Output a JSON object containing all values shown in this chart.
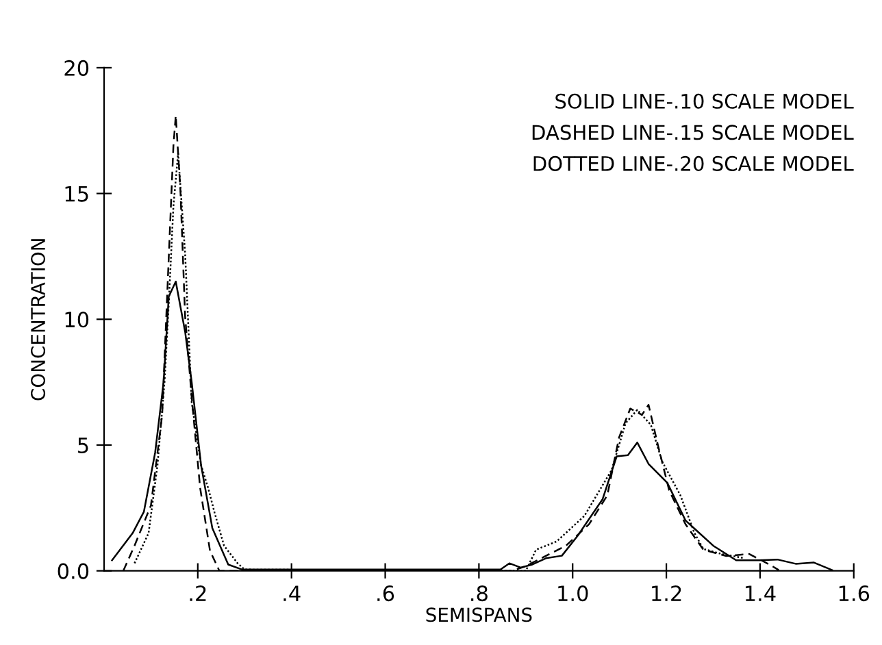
{
  "chart_data": {
    "type": "line",
    "xlabel": "SEMISPANS",
    "ylabel": "CONCENTRATION",
    "annotations": [
      "SOLID LINE-.10 SCALE MODEL",
      "DASHED LINE-.15 SCALE MODEL",
      "DOTTED LINE-.20 SCALE MODEL"
    ],
    "xlim": [
      0,
      1.6
    ],
    "ylim": [
      0,
      20
    ],
    "xticks": [
      {
        "value": 0.2,
        "label": ".2"
      },
      {
        "value": 0.4,
        "label": ".4"
      },
      {
        "value": 0.6,
        "label": ".6"
      },
      {
        "value": 0.8,
        "label": ".8"
      },
      {
        "value": 1.0,
        "label": "1.0"
      },
      {
        "value": 1.2,
        "label": "1.2"
      },
      {
        "value": 1.4,
        "label": "1.4"
      },
      {
        "value": 1.6,
        "label": "1.6"
      }
    ],
    "yticks": [
      {
        "value": 0,
        "label": "0.0"
      },
      5,
      10,
      15,
      20
    ],
    "grid": false,
    "legend": false,
    "marker": "none",
    "series": [
      {
        "color": "#000000",
        "line_style": "solid",
        "x": [
          0.017,
          0.061,
          0.085,
          0.109,
          0.127,
          0.138,
          0.153,
          0.173,
          0.187,
          0.207,
          0.231,
          0.265,
          0.295,
          0.846,
          0.865,
          0.889,
          0.914,
          0.943,
          0.977,
          1.011,
          1.064,
          1.094,
          1.118,
          1.138,
          1.162,
          1.202,
          1.241,
          1.3,
          1.349,
          1.398,
          1.437,
          1.476,
          1.515,
          1.554
        ],
        "values": [
          0.42,
          1.5,
          2.35,
          4.7,
          7.5,
          10.9,
          11.5,
          9.5,
          7.5,
          4.2,
          1.7,
          0.25,
          0.05,
          0.05,
          0.3,
          0.13,
          0.25,
          0.5,
          0.6,
          1.4,
          2.85,
          4.55,
          4.6,
          5.1,
          4.25,
          3.5,
          2.0,
          1.0,
          0.42,
          0.42,
          0.45,
          0.28,
          0.33,
          0.03
        ]
      },
      {
        "color": "#000000",
        "line_style": "dashed",
        "x": [
          0.041,
          0.065,
          0.1,
          0.124,
          0.148,
          0.153,
          0.163,
          0.173,
          0.187,
          0.205,
          0.226,
          0.246,
          0.87,
          0.898,
          0.986,
          1.035,
          1.074,
          1.099,
          1.123,
          1.148,
          1.162,
          1.182,
          1.206,
          1.241,
          1.279,
          1.328,
          1.377,
          1.42,
          1.44
        ],
        "values": [
          0,
          1.0,
          2.6,
          6.2,
          16.9,
          18.1,
          15.1,
          10.1,
          6.9,
          3.3,
          0.8,
          0,
          0,
          0.17,
          1.0,
          1.85,
          3.0,
          5.3,
          6.45,
          6.2,
          6.6,
          5.0,
          3.2,
          1.85,
          0.84,
          0.59,
          0.67,
          0.25,
          0.03
        ]
      },
      {
        "color": "#000000",
        "line_style": "dotted",
        "x": [
          0.065,
          0.095,
          0.114,
          0.129,
          0.138,
          0.148,
          0.158,
          0.173,
          0.187,
          0.207,
          0.222,
          0.236,
          0.256,
          0.285,
          0.3,
          0.9,
          0.922,
          0.966,
          1.025,
          1.083,
          1.113,
          1.138,
          1.167,
          1.191,
          1.23,
          1.26,
          1.279,
          1.318,
          1.367
        ],
        "values": [
          0.3,
          1.5,
          4.2,
          7.5,
          10.6,
          14.5,
          16.6,
          12.6,
          6.7,
          4.2,
          3.3,
          2.3,
          1.0,
          0.3,
          0.05,
          0,
          0.84,
          1.17,
          2.18,
          4.0,
          5.87,
          6.4,
          5.8,
          4.35,
          3.0,
          1.5,
          0.87,
          0.67,
          0.5
        ]
      }
    ]
  }
}
